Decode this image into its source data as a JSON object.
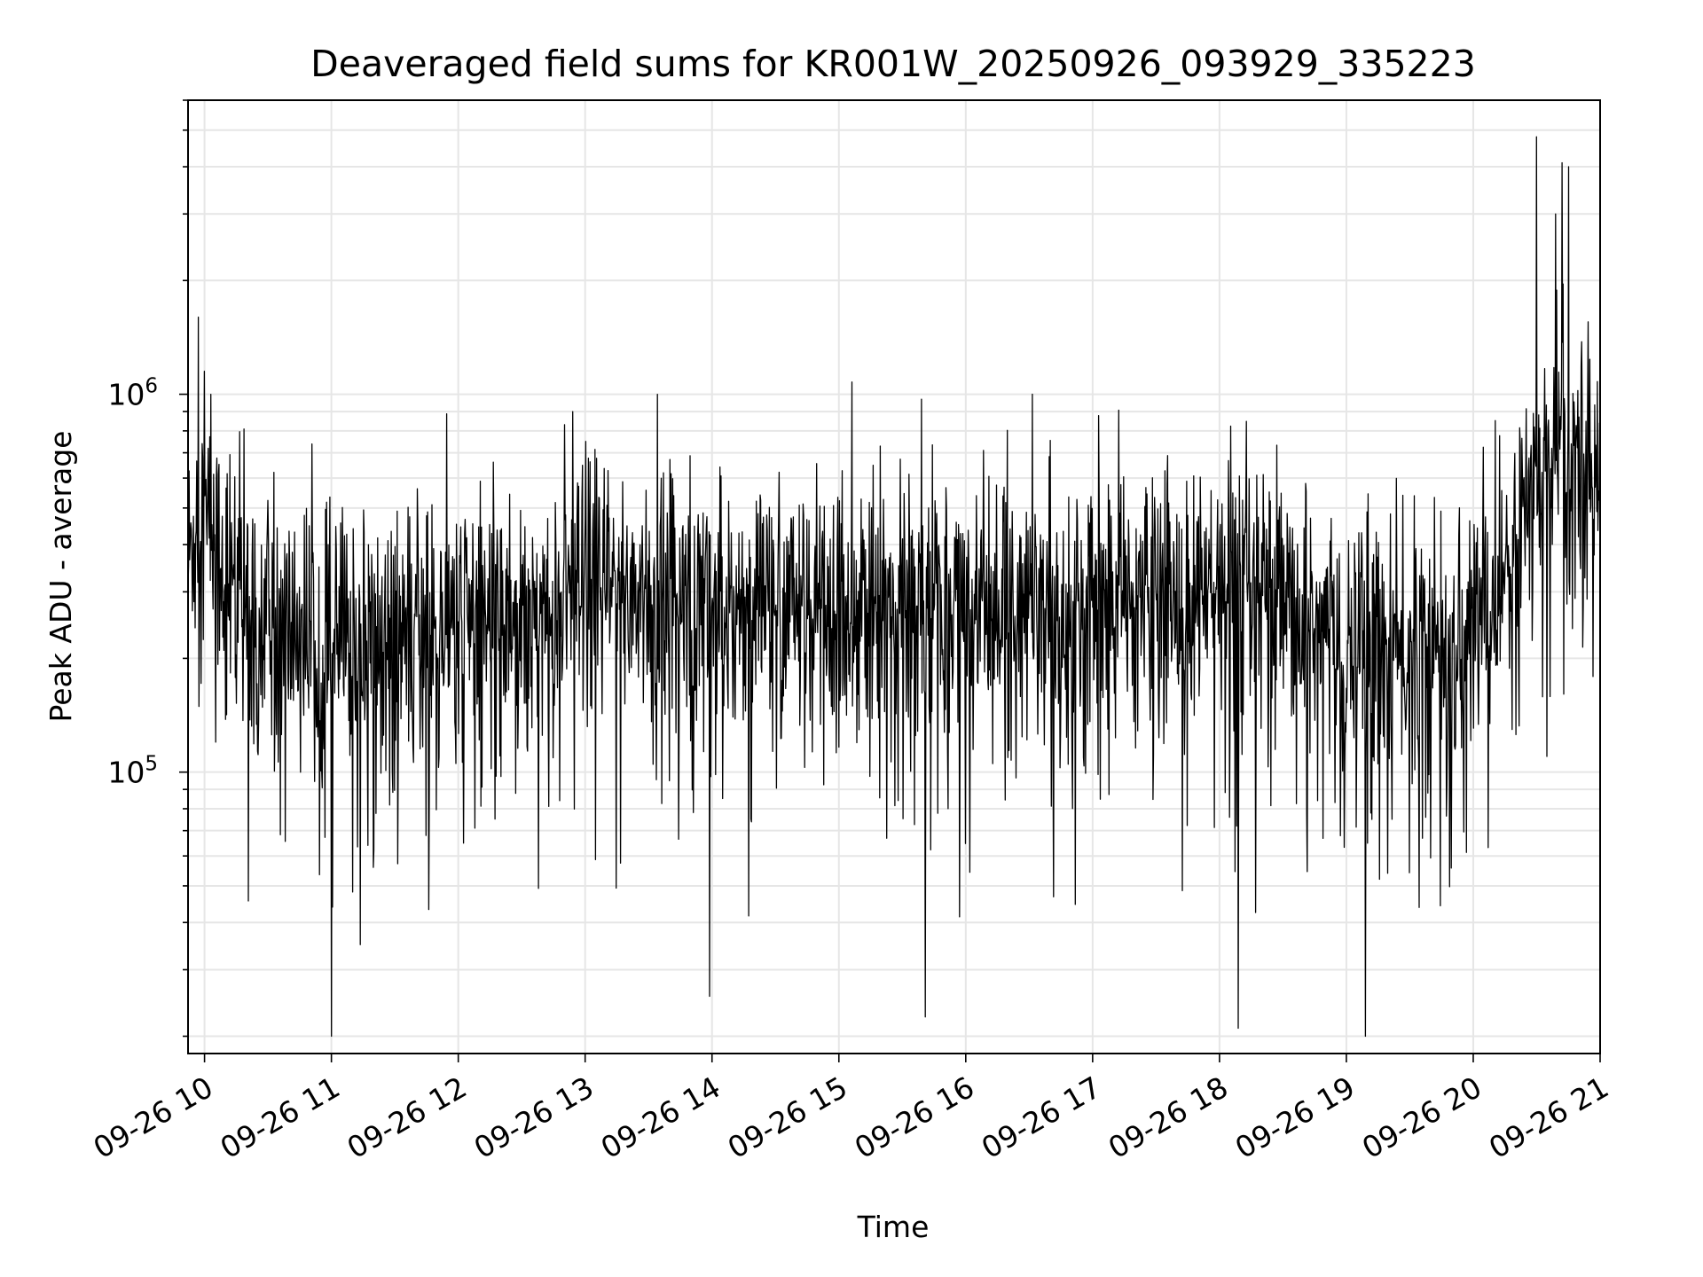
{
  "chart_data": {
    "type": "line",
    "title": "Deaveraged field sums for KR001W_20250926_093929_335223",
    "xlabel": "Time",
    "ylabel": "Peak ADU - average",
    "yscale": "log",
    "ylim": [
      18000,
      6000000
    ],
    "xlim_hours": [
      9.87,
      21.0
    ],
    "grid": true,
    "x_tick_labels": [
      "09-26 10",
      "09-26 11",
      "09-26 12",
      "09-26 13",
      "09-26 14",
      "09-26 15",
      "09-26 16",
      "09-26 17",
      "09-26 18",
      "09-26 19",
      "09-26 20",
      "09-26 21"
    ],
    "x_tick_hours": [
      10,
      11,
      12,
      13,
      14,
      15,
      16,
      17,
      18,
      19,
      20,
      21
    ],
    "y_tick_labels": [
      {
        "base": "10",
        "exp": "5",
        "value": 100000
      },
      {
        "base": "10",
        "exp": "6",
        "value": 1000000
      }
    ],
    "series": [
      {
        "name": "Peak ADU - average",
        "color": "#000000",
        "sample_count": 2600,
        "anchor_hours": [
          9.87,
          9.95,
          10.1,
          10.3,
          10.5,
          11.0,
          11.5,
          12.0,
          12.5,
          13.0,
          13.5,
          14.0,
          14.5,
          15.0,
          15.5,
          16.0,
          16.5,
          17.0,
          17.5,
          18.0,
          18.5,
          19.0,
          19.5,
          19.9,
          20.2,
          20.5,
          20.7,
          20.85,
          21.0
        ],
        "anchor_median": [
          350000,
          500000,
          380000,
          290000,
          250000,
          220000,
          230000,
          250000,
          270000,
          300000,
          300000,
          290000,
          270000,
          270000,
          280000,
          280000,
          270000,
          280000,
          290000,
          290000,
          260000,
          220000,
          200000,
          220000,
          300000,
          600000,
          750000,
          700000,
          650000
        ],
        "spikes": [
          {
            "hour": 9.95,
            "value": 1600000
          },
          {
            "hour": 10.0,
            "value": 1150000
          },
          {
            "hour": 10.05,
            "value": 1000000
          },
          {
            "hour": 11.0,
            "value": 20000
          },
          {
            "hour": 12.9,
            "value": 900000
          },
          {
            "hour": 13.57,
            "value": 1000000
          },
          {
            "hour": 13.98,
            "value": 25500
          },
          {
            "hour": 15.65,
            "value": 970000
          },
          {
            "hour": 15.68,
            "value": 22500
          },
          {
            "hour": 18.15,
            "value": 21000
          },
          {
            "hour": 19.15,
            "value": 20000
          },
          {
            "hour": 20.5,
            "value": 4800000
          },
          {
            "hour": 20.58,
            "value": 110000
          },
          {
            "hour": 20.7,
            "value": 4100000
          },
          {
            "hour": 20.75,
            "value": 4000000
          },
          {
            "hour": 20.65,
            "value": 3000000
          }
        ]
      }
    ]
  }
}
